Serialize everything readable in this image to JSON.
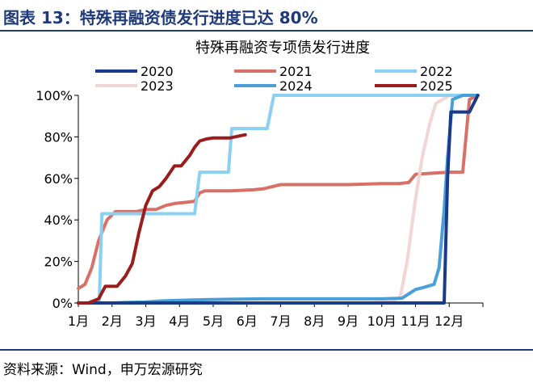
{
  "figure": {
    "title": "图表 13：特殊再融资债发行进度已达 80%",
    "source": "资料来源：Wind，申万宏源研究"
  },
  "chart_data": {
    "type": "line",
    "title": "特殊再融资专项债发行进度",
    "xlabel": "",
    "ylabel": "",
    "x_ticks": [
      "1月",
      "2月",
      "3月",
      "4月",
      "5月",
      "6月",
      "7月",
      "8月",
      "9月",
      "10月",
      "11月",
      "12月"
    ],
    "y_ticks": [
      "0%",
      "20%",
      "40%",
      "60%",
      "80%",
      "100%"
    ],
    "xlim": [
      1,
      13
    ],
    "ylim": [
      0,
      100
    ],
    "grid": false,
    "legend_position": "top",
    "series": [
      {
        "name": "2020",
        "color": "#1a3a8c",
        "x": [
          1,
          10.4,
          11.85,
          11.95,
          12.05,
          12.15,
          12.6,
          12.85
        ],
        "y": [
          0,
          0,
          0,
          60,
          92,
          92,
          92,
          100
        ]
      },
      {
        "name": "2021",
        "color": "#d97068",
        "x": [
          1,
          1.2,
          1.4,
          1.6,
          1.85,
          2.1,
          2.4,
          2.7,
          3.0,
          3.3,
          3.6,
          3.9,
          4.2,
          4.45,
          4.6,
          4.75,
          5.5,
          6.2,
          6.5,
          7.0,
          8.0,
          9.0,
          10.0,
          10.5,
          10.8,
          11.0,
          11.5,
          12.0,
          12.4,
          12.6,
          12.85
        ],
        "y": [
          7,
          9,
          17,
          30,
          40,
          44,
          44,
          44,
          45,
          45,
          47,
          48,
          48.5,
          49,
          53,
          54,
          54,
          54.5,
          55,
          57,
          57,
          57,
          57.5,
          57.5,
          58,
          62,
          62.5,
          63,
          63,
          98,
          100
        ]
      },
      {
        "name": "2022",
        "color": "#8ad0f2",
        "x": [
          1,
          1.45,
          1.62,
          1.7,
          4.45,
          4.6,
          5.45,
          5.55,
          6.6,
          6.8,
          11.4,
          11.9,
          12.1,
          12.85
        ],
        "y": [
          0,
          0,
          0,
          43,
          43,
          63,
          63,
          84,
          84,
          100,
          100,
          100,
          100,
          100
        ]
      },
      {
        "name": "2023",
        "color": "#f2d5d5",
        "x": [
          1,
          9.6,
          10.3,
          10.55,
          10.75,
          11.0,
          11.2,
          11.4,
          11.6,
          12.0,
          12.85
        ],
        "y": [
          0,
          0,
          0.5,
          3,
          20,
          50,
          70,
          85,
          96,
          100,
          100
        ]
      },
      {
        "name": "2024",
        "color": "#4b9fd8",
        "x": [
          1,
          2.0,
          2.5,
          3.0,
          3.5,
          4.5,
          5.5,
          6.5,
          10.0,
          10.6,
          11.0,
          11.25,
          11.55,
          11.7,
          11.85,
          11.95,
          12.1,
          12.4,
          12.85
        ],
        "y": [
          0,
          0,
          0.3,
          0.5,
          1,
          1.5,
          1.8,
          2,
          2,
          2.3,
          6.5,
          7.5,
          9,
          17,
          45,
          70,
          98,
          100,
          100
        ]
      },
      {
        "name": "2025",
        "color": "#9b1c1c",
        "x": [
          1,
          1.3,
          1.6,
          1.8,
          2.15,
          2.4,
          2.6,
          2.8,
          3.0,
          3.2,
          3.4,
          3.6,
          3.85,
          4.05,
          4.3,
          4.45,
          4.6,
          4.8,
          5.0,
          5.2,
          5.5,
          5.8,
          5.95
        ],
        "y": [
          0,
          0,
          2,
          8,
          8,
          13,
          19,
          34,
          47,
          54,
          56,
          60,
          66,
          66,
          71,
          75,
          78,
          79,
          79.5,
          79.5,
          79.5,
          80.5,
          81
        ]
      }
    ]
  }
}
